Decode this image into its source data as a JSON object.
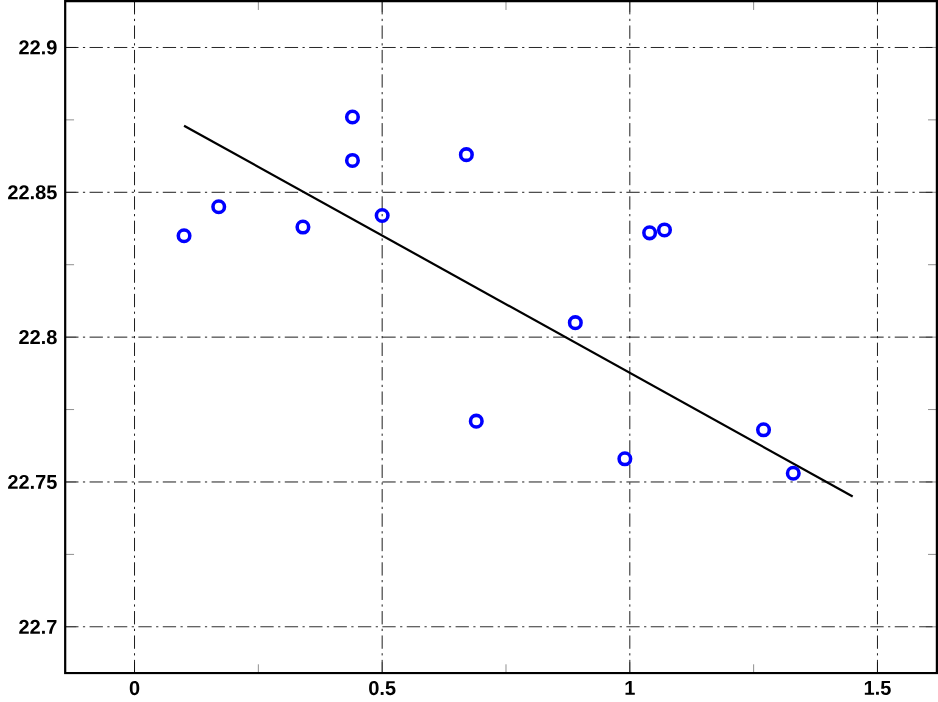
{
  "chart_data": {
    "type": "scatter",
    "xlim": [
      -0.14,
      1.62
    ],
    "ylim": [
      22.684,
      22.916
    ],
    "xticks": [
      0,
      {
        "value": 0.25,
        "label": null
      },
      0.5,
      {
        "value": 0.75,
        "label": null
      },
      1,
      {
        "value": 1.25,
        "label": null
      },
      1.5
    ],
    "yticks": [
      22.7,
      {
        "value": 22.725,
        "label": null
      },
      22.75,
      {
        "value": 22.775,
        "label": null
      },
      22.8,
      {
        "value": 22.825,
        "label": null
      },
      22.85,
      {
        "value": 22.875,
        "label": null
      },
      22.9
    ],
    "grid": true,
    "marker": "circle",
    "series": [
      {
        "color": "#0000ff",
        "x": [
          0.1,
          0.17,
          0.34,
          0.44,
          0.44,
          0.5,
          0.67,
          0.69,
          0.89,
          0.99,
          1.04,
          1.07,
          1.27,
          1.33
        ],
        "values": [
          22.835,
          22.845,
          22.838,
          22.876,
          22.861,
          22.842,
          22.863,
          22.771,
          22.805,
          22.758,
          22.836,
          22.837,
          22.768,
          22.753
        ]
      },
      {
        "type": "line",
        "color": "#000000",
        "marker": "none",
        "x": [
          0.1,
          1.45
        ],
        "values": [
          22.873,
          22.745
        ]
      }
    ]
  }
}
